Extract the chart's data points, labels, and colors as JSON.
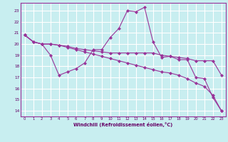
{
  "xlabel": "Windchill (Refroidissement éolien,°C)",
  "background_color": "#c8eef0",
  "line_color": "#993399",
  "grid_color": "#ffffff",
  "ylim": [
    13.5,
    23.7
  ],
  "xlim": [
    -0.5,
    23.5
  ],
  "yticks": [
    14,
    15,
    16,
    17,
    18,
    19,
    20,
    21,
    22,
    23
  ],
  "xticks": [
    0,
    1,
    2,
    3,
    4,
    5,
    6,
    7,
    8,
    9,
    10,
    11,
    12,
    13,
    14,
    15,
    16,
    17,
    18,
    19,
    20,
    21,
    22,
    23
  ],
  "curve1_x": [
    0,
    1,
    2,
    3,
    4,
    5,
    6,
    7,
    8,
    9,
    10,
    11,
    12,
    13,
    14,
    15,
    16,
    17,
    18,
    19,
    20,
    21,
    22,
    23
  ],
  "curve1_y": [
    20.8,
    20.2,
    20.0,
    19.0,
    17.2,
    17.5,
    17.8,
    18.3,
    19.5,
    19.5,
    20.6,
    21.4,
    23.0,
    22.9,
    23.3,
    20.2,
    18.8,
    18.9,
    18.6,
    18.6,
    17.0,
    16.9,
    15.2,
    14.0
  ],
  "curve2_x": [
    0,
    1,
    2,
    3,
    4,
    5,
    6,
    7,
    8,
    9,
    10,
    11,
    12,
    13,
    14,
    15,
    16,
    17,
    18,
    19,
    20,
    21,
    22,
    23
  ],
  "curve2_y": [
    20.8,
    20.2,
    20.0,
    20.0,
    19.9,
    19.8,
    19.6,
    19.5,
    19.4,
    19.3,
    19.2,
    19.2,
    19.2,
    19.2,
    19.2,
    19.2,
    19.0,
    18.9,
    18.8,
    18.7,
    18.5,
    18.5,
    18.5,
    17.2
  ],
  "curve3_x": [
    0,
    1,
    2,
    3,
    4,
    5,
    6,
    7,
    8,
    9,
    10,
    11,
    12,
    13,
    14,
    15,
    16,
    17,
    18,
    19,
    20,
    21,
    22,
    23
  ],
  "curve3_y": [
    20.8,
    20.2,
    20.0,
    20.0,
    19.9,
    19.7,
    19.5,
    19.3,
    19.1,
    18.9,
    18.7,
    18.5,
    18.3,
    18.1,
    17.9,
    17.7,
    17.5,
    17.4,
    17.2,
    16.9,
    16.5,
    16.2,
    15.4,
    14.0
  ]
}
